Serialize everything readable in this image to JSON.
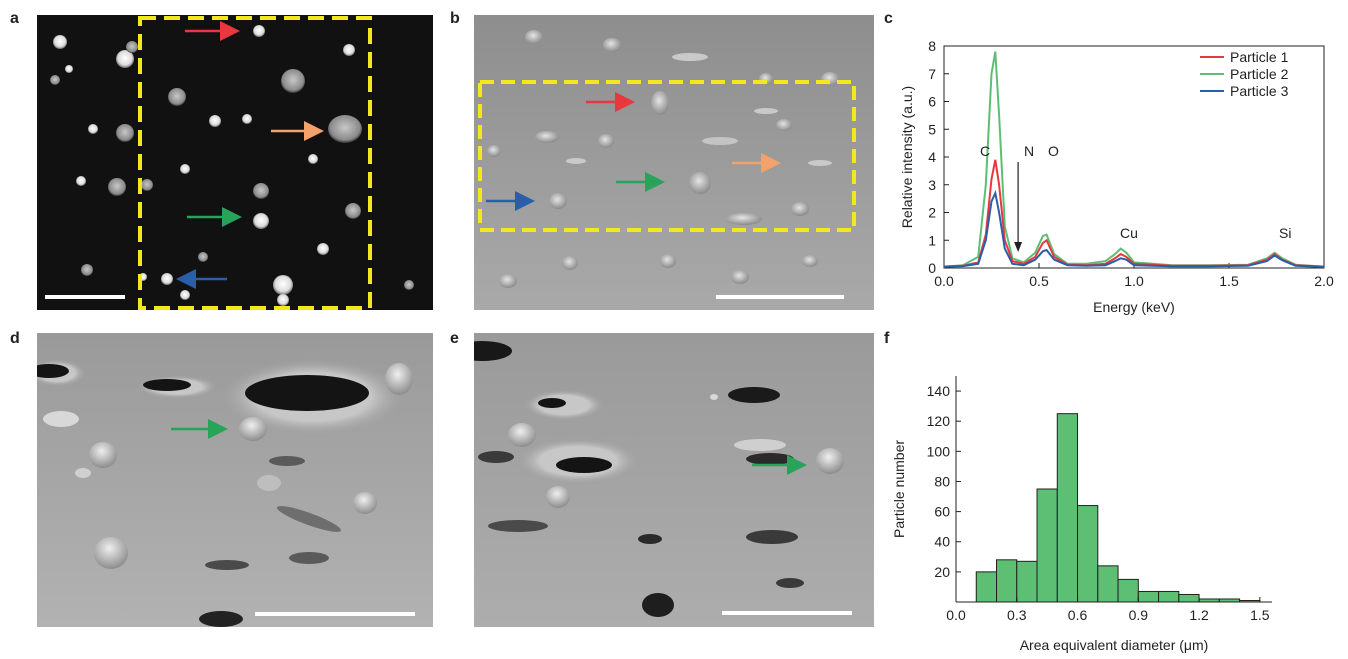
{
  "panels": {
    "a": "a",
    "b": "b",
    "c": "c",
    "d": "d",
    "e": "e",
    "f": "f"
  },
  "colors": {
    "particle1": "#e8383d",
    "particle2": "#5cbf73",
    "particle3": "#2b5ea8",
    "orange_arrow": "#f4a26a",
    "green_arrow": "#27a35a",
    "selection_box": "#f2e81c",
    "histogram_fill": "#5cbf73"
  },
  "chart_data": [
    {
      "type": "line",
      "panel": "c",
      "xlabel": "Energy (keV)",
      "ylabel": "Relative intensity (a.u.)",
      "xlim": [
        0.0,
        2.0
      ],
      "ylim": [
        0,
        8
      ],
      "xticks": [
        "0.0",
        "0.5",
        "1.0",
        "1.5",
        "2.0"
      ],
      "yticks": [
        "0",
        "1",
        "2",
        "3",
        "4",
        "5",
        "6",
        "7",
        "8"
      ],
      "legend": "top-right",
      "annotations": {
        "C": "C",
        "N": "N",
        "O": "O",
        "Cu": "Cu",
        "Si": "Si"
      },
      "series": [
        {
          "name": "Particle 1",
          "x": [
            0.0,
            0.1,
            0.18,
            0.22,
            0.25,
            0.27,
            0.29,
            0.32,
            0.36,
            0.42,
            0.48,
            0.52,
            0.54,
            0.58,
            0.65,
            0.75,
            0.85,
            0.9,
            0.93,
            0.96,
            1.0,
            1.2,
            1.4,
            1.6,
            1.7,
            1.74,
            1.78,
            1.85,
            2.0
          ],
          "y": [
            0.05,
            0.08,
            0.2,
            1.2,
            3.2,
            3.9,
            3.0,
            1.0,
            0.25,
            0.15,
            0.4,
            0.9,
            1.0,
            0.4,
            0.12,
            0.1,
            0.15,
            0.35,
            0.5,
            0.4,
            0.15,
            0.08,
            0.08,
            0.1,
            0.3,
            0.5,
            0.3,
            0.1,
            0.05
          ]
        },
        {
          "name": "Particle 2",
          "x": [
            0.0,
            0.1,
            0.18,
            0.22,
            0.25,
            0.27,
            0.29,
            0.32,
            0.36,
            0.42,
            0.48,
            0.52,
            0.54,
            0.58,
            0.65,
            0.75,
            0.85,
            0.9,
            0.93,
            0.96,
            1.0,
            1.2,
            1.4,
            1.6,
            1.7,
            1.74,
            1.78,
            1.85,
            2.0
          ],
          "y": [
            0.05,
            0.1,
            0.4,
            3.0,
            7.0,
            7.8,
            5.5,
            1.5,
            0.35,
            0.2,
            0.55,
            1.15,
            1.2,
            0.5,
            0.15,
            0.15,
            0.25,
            0.5,
            0.7,
            0.55,
            0.2,
            0.1,
            0.1,
            0.12,
            0.35,
            0.55,
            0.35,
            0.12,
            0.05
          ]
        },
        {
          "name": "Particle 3",
          "x": [
            0.0,
            0.1,
            0.18,
            0.22,
            0.25,
            0.27,
            0.29,
            0.32,
            0.36,
            0.42,
            0.48,
            0.52,
            0.54,
            0.58,
            0.65,
            0.75,
            0.85,
            0.9,
            0.93,
            0.96,
            1.0,
            1.2,
            1.4,
            1.6,
            1.7,
            1.74,
            1.78,
            1.85,
            2.0
          ],
          "y": [
            0.05,
            0.07,
            0.15,
            1.0,
            2.4,
            2.7,
            2.0,
            0.7,
            0.15,
            0.1,
            0.3,
            0.6,
            0.65,
            0.3,
            0.1,
            0.08,
            0.1,
            0.25,
            0.35,
            0.3,
            0.1,
            0.06,
            0.06,
            0.08,
            0.25,
            0.45,
            0.28,
            0.08,
            0.04
          ]
        }
      ]
    },
    {
      "type": "bar",
      "panel": "f",
      "xlabel": "Area equivalent diameter (μm)",
      "ylabel": "Particle number",
      "xlim": [
        0.0,
        1.56
      ],
      "ylim": [
        0,
        150
      ],
      "xticks": [
        "0.0",
        "0.3",
        "0.6",
        "0.9",
        "1.2",
        "1.5"
      ],
      "yticks": [
        "20",
        "40",
        "60",
        "80",
        "100",
        "120",
        "140"
      ],
      "bin_width": 0.1,
      "bins_start": [
        0.1,
        0.2,
        0.3,
        0.4,
        0.5,
        0.6,
        0.7,
        0.8,
        0.9,
        1.0,
        1.1,
        1.2,
        1.3,
        1.4
      ],
      "values": [
        20,
        28,
        27,
        75,
        125,
        64,
        24,
        15,
        7,
        7,
        5,
        2,
        2,
        1
      ]
    }
  ]
}
